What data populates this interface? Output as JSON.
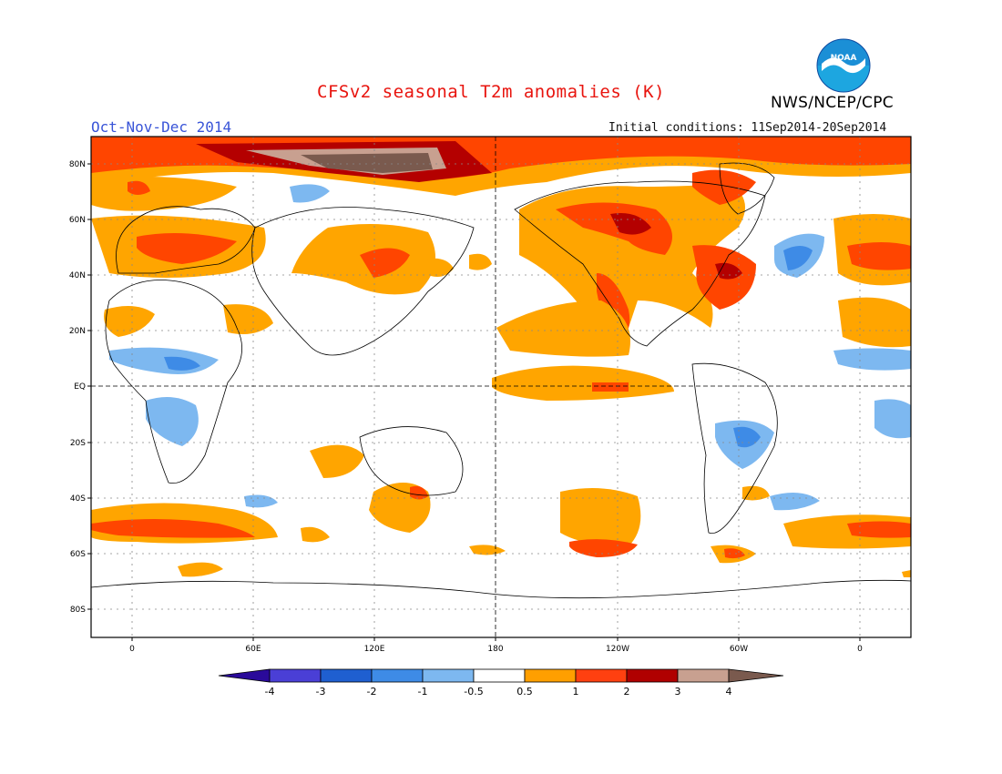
{
  "title": "CFSv2 seasonal T2m anomalies (K)",
  "period": "Oct-Nov-Dec 2014",
  "initial_conditions": "Initial conditions: 11Sep2014-20Sep2014",
  "organization": "NWS/NCEP/CPC",
  "logo_text": "NOAA",
  "y_axis_labels": [
    "80N",
    "60N",
    "40N",
    "20N",
    "EQ",
    "20S",
    "40S",
    "60S",
    "80S"
  ],
  "x_axis_labels": [
    "0",
    "60E",
    "120E",
    "180",
    "120W",
    "60W",
    "0"
  ],
  "colorbar": {
    "labels": [
      "-4",
      "-3",
      "-2",
      "-1",
      "-0.5",
      "0.5",
      "1",
      "2",
      "3",
      "4"
    ],
    "colors": [
      "#2a0a9a",
      "#4a3fd6",
      "#1f5fd0",
      "#3e8be6",
      "#7db8f0",
      "#ffffff",
      "#ff9f00",
      "#ff4010",
      "#b00000",
      "#c8a090",
      "#7a5a4e"
    ]
  },
  "map_legend_colors": {
    "above_0_5": "#ffa500",
    "above_1": "#ff4500",
    "above_2": "#b40000",
    "above_3": "#c8a090",
    "above_4": "#7a5a4e",
    "below_0_5": "#7db8f0",
    "below_1": "#3e8be6",
    "below_2": "#1f5fd0"
  }
}
